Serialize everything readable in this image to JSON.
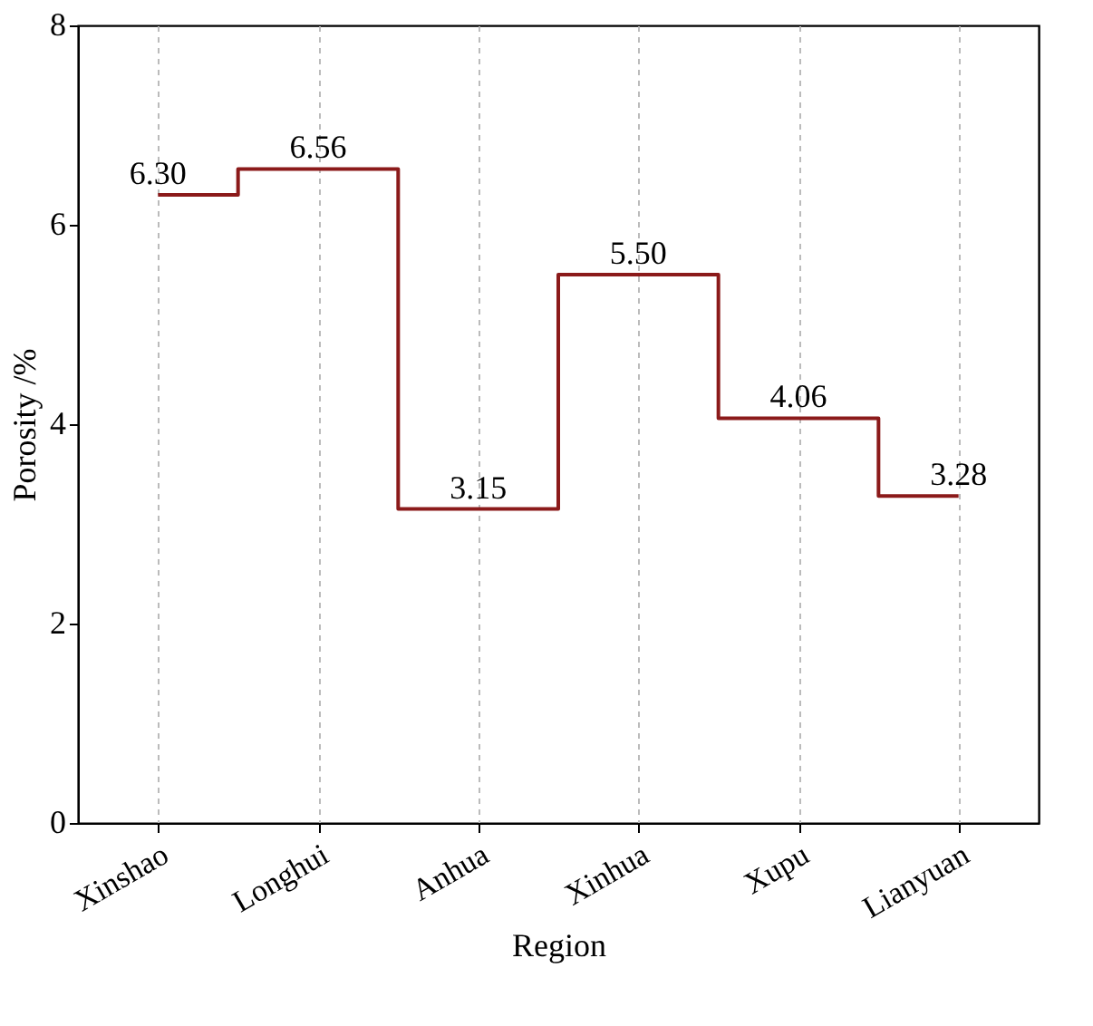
{
  "chart_data": {
    "type": "step",
    "xlabel": "Region",
    "ylabel": "Porosity /%",
    "categories": [
      "Xinshao",
      "Longhui",
      "Anhua",
      "Xinhua",
      "Xupu",
      "Lianyuan"
    ],
    "series": [
      {
        "color": "#8b1a1a",
        "values": [
          6.3,
          6.56,
          3.15,
          5.5,
          4.06,
          3.28
        ]
      }
    ],
    "value_labels": [
      "6.30",
      "6.56",
      "3.15",
      "5.50",
      "4.06",
      "3.28"
    ],
    "ylim": [
      0,
      8
    ],
    "yticks": [
      0,
      2,
      4,
      6,
      8
    ],
    "grid": "x",
    "marker": "none",
    "line_style": "solid"
  }
}
